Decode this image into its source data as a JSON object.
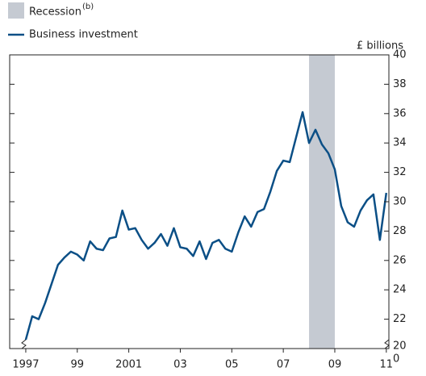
{
  "chart_data": {
    "type": "line",
    "y_unit": "£ billions",
    "x": [
      1997,
      1997.25,
      1997.5,
      1997.75,
      1998,
      1998.25,
      1998.5,
      1998.75,
      1999,
      1999.25,
      1999.5,
      1999.75,
      2000,
      2000.25,
      2000.5,
      2000.75,
      2001,
      2001.25,
      2001.5,
      2001.75,
      2002,
      2002.25,
      2002.5,
      2002.75,
      2003,
      2003.25,
      2003.5,
      2003.75,
      2004,
      2004.25,
      2004.5,
      2004.75,
      2005,
      2005.25,
      2005.5,
      2005.75,
      2006,
      2006.25,
      2006.5,
      2006.75,
      2007,
      2007.25,
      2007.5,
      2007.75,
      2008,
      2008.25,
      2008.5,
      2008.75,
      2009,
      2009.25,
      2009.5,
      2009.75,
      2010,
      2010.25,
      2010.5,
      2010.75,
      2011
    ],
    "series": [
      {
        "name": "Business investment",
        "color": "#0b4f86",
        "values": [
          20.6,
          22.2,
          22.0,
          23.1,
          24.4,
          25.7,
          26.2,
          26.6,
          26.4,
          26.0,
          27.3,
          26.8,
          26.7,
          27.5,
          27.6,
          29.4,
          28.1,
          28.2,
          27.4,
          26.8,
          27.2,
          27.8,
          27.0,
          28.2,
          26.9,
          26.8,
          26.3,
          27.3,
          26.1,
          27.2,
          27.4,
          26.8,
          26.6,
          27.9,
          29.0,
          28.3,
          29.3,
          29.5,
          30.7,
          32.1,
          32.8,
          32.7,
          34.4,
          36.1,
          34.0,
          34.9,
          33.9,
          33.3,
          32.2,
          29.7,
          28.6,
          28.3,
          29.4,
          30.1,
          30.5,
          27.4,
          30.6
        ]
      }
    ],
    "shading": {
      "name": "Recession",
      "note": "(b)",
      "color": "#c5cad2",
      "x": [
        2008.0,
        2009.0
      ]
    },
    "xlim": [
      1996.375,
      2011.1
    ],
    "xticks": [
      1997,
      {
        "value": 1999,
        "label": "99"
      },
      2001,
      {
        "value": 2003,
        "label": "03"
      },
      {
        "value": 2005,
        "label": "05"
      },
      {
        "value": 2007,
        "label": "07"
      },
      {
        "value": 2009,
        "label": "09"
      },
      {
        "value": 2011,
        "label": "11"
      }
    ],
    "ylim": [
      20,
      40
    ],
    "yticks": [
      20,
      22,
      24,
      26,
      28,
      30,
      32,
      34,
      36,
      38,
      40
    ],
    "y_break_tick": 0
  }
}
